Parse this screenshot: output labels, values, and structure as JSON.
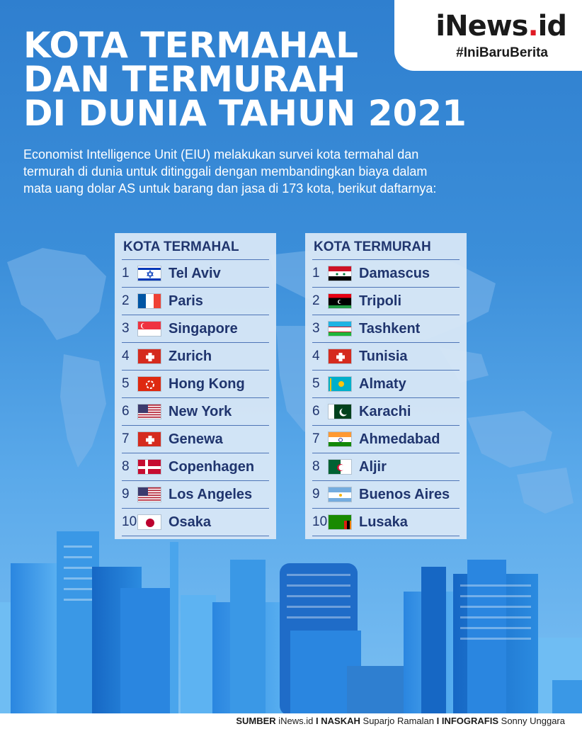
{
  "title": {
    "line1": "KOTA TERMAHAL",
    "line2": "DAN TERMURAH",
    "line3": "DI DUNIA TAHUN 2021"
  },
  "description": "Economist Intelligence Unit (EIU) melakukan survei kota termahal dan termurah di dunia untuk ditinggali dengan membandingkan biaya dalam mata uang dolar AS untuk barang dan jasa di 173 kota, berikut daftarnya:",
  "brand": {
    "logo_main": "iNews",
    "logo_dot": ".",
    "logo_suffix": "id",
    "tagline": "#IniBaruBerita"
  },
  "expensive": {
    "header": "KOTA TERMAHAL",
    "rows": [
      {
        "rank": "1",
        "city": "Tel Aviv",
        "flag": "israel-flag-icon"
      },
      {
        "rank": "2",
        "city": "Paris",
        "flag": "france-flag-icon"
      },
      {
        "rank": "3",
        "city": "Singapore",
        "flag": "singapore-flag-icon"
      },
      {
        "rank": "4",
        "city": "Zurich",
        "flag": "switzerland-flag-icon"
      },
      {
        "rank": "5",
        "city": "Hong Kong",
        "flag": "hong-kong-flag-icon"
      },
      {
        "rank": "6",
        "city": "New York",
        "flag": "usa-flag-icon"
      },
      {
        "rank": "7",
        "city": "Genewa",
        "flag": "switzerland-flag-icon"
      },
      {
        "rank": "8",
        "city": "Copenhagen",
        "flag": "denmark-flag-icon"
      },
      {
        "rank": "9",
        "city": "Los Angeles",
        "flag": "usa-flag-icon"
      },
      {
        "rank": "10",
        "city": "Osaka",
        "flag": "japan-flag-icon"
      }
    ]
  },
  "cheap": {
    "header": "KOTA TERMURAH",
    "rows": [
      {
        "rank": "1",
        "city": "Damascus",
        "flag": "syria-flag-icon"
      },
      {
        "rank": "2",
        "city": "Tripoli",
        "flag": "libya-flag-icon"
      },
      {
        "rank": "3",
        "city": "Tashkent",
        "flag": "uzbekistan-flag-icon"
      },
      {
        "rank": "4",
        "city": "Tunisia",
        "flag": "switzerland-flag-icon"
      },
      {
        "rank": "5",
        "city": "Almaty",
        "flag": "kazakhstan-flag-icon"
      },
      {
        "rank": "6",
        "city": "Karachi",
        "flag": "pakistan-flag-icon"
      },
      {
        "rank": "7",
        "city": "Ahmedabad",
        "flag": "india-flag-icon"
      },
      {
        "rank": "8",
        "city": "Aljir",
        "flag": "algeria-flag-icon"
      },
      {
        "rank": "9",
        "city": "Buenos Aires",
        "flag": "argentina-flag-icon"
      },
      {
        "rank": "10",
        "city": "Lusaka",
        "flag": "zambia-flag-icon"
      }
    ]
  },
  "footer": {
    "source_label": "SUMBER",
    "source_value": "iNews.id",
    "sep1": "I",
    "writer_label": "NASKAH",
    "writer_value": "Suparjo Ramalan",
    "sep2": "I",
    "graphic_label": "INFOGRAFIS",
    "graphic_value": "Sonny Unggara"
  },
  "colors": {
    "background_top": "#2f7fcf",
    "panel_text": "#20356e",
    "logo_dot": "#e01b24"
  }
}
